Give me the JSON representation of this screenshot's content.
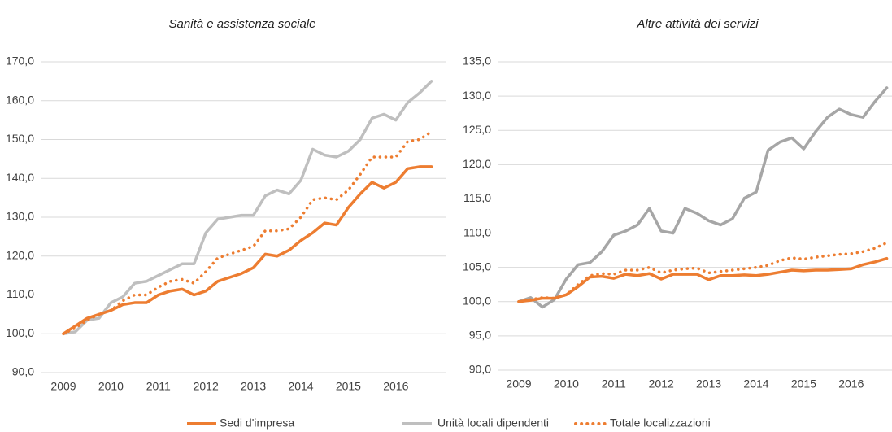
{
  "chart_data": [
    {
      "type": "line",
      "title": "Sanità e assistenza sociale",
      "categories": [
        "2009",
        null,
        null,
        null,
        "2010",
        null,
        null,
        null,
        "2011",
        null,
        null,
        null,
        "2012",
        null,
        null,
        null,
        "2013",
        null,
        null,
        null,
        "2014",
        null,
        null,
        null,
        "2015",
        null,
        null,
        null,
        "2016",
        null,
        null,
        null
      ],
      "series": [
        {
          "name": "Sedi d'impresa",
          "color": "#ed7d31",
          "style": "solid",
          "values": [
            100,
            102,
            104,
            105,
            106,
            107.5,
            108,
            108,
            110,
            111,
            111.5,
            110,
            111,
            113.5,
            114.5,
            115.5,
            117,
            120.5,
            120,
            121.5,
            124,
            126,
            128.5,
            128,
            132.5,
            136,
            139,
            137.5,
            139,
            142.5,
            143,
            143
          ]
        },
        {
          "name": "Unità locali dipendenti",
          "color": "#bfbfbf",
          "style": "solid",
          "values": [
            100,
            100.5,
            103.5,
            104,
            108,
            109.5,
            113,
            113.5,
            115,
            116.5,
            118,
            118,
            126,
            129.5,
            130,
            130.5,
            130.5,
            135.5,
            137,
            136,
            139.5,
            147.5,
            146,
            145.5,
            147,
            150,
            155.5,
            156.5,
            155,
            159.5,
            162,
            165
          ]
        },
        {
          "name": "Totale localizzazioni",
          "color": "#ed7d31",
          "style": "dotted",
          "values": [
            100,
            101.5,
            103.5,
            105,
            106,
            108.5,
            110,
            110,
            112,
            113.5,
            114,
            113,
            116,
            119.5,
            120.5,
            121.5,
            122.5,
            126.5,
            126.5,
            127,
            130,
            134.5,
            135,
            134.5,
            137,
            141,
            145.5,
            145.5,
            145.5,
            149.5,
            150,
            152
          ]
        }
      ],
      "ylim": [
        90,
        170
      ],
      "yticks": [
        {
          "value": 90,
          "label": "90,0"
        },
        {
          "value": 100,
          "label": "100,0"
        },
        {
          "value": 110,
          "label": "110,0"
        },
        {
          "value": 120,
          "label": "120,0"
        },
        {
          "value": 130,
          "label": "130,0"
        },
        {
          "value": 140,
          "label": "140,0"
        },
        {
          "value": 150,
          "label": "150,0"
        },
        {
          "value": 160,
          "label": "160,0"
        },
        {
          "value": 170,
          "label": "170,0"
        }
      ],
      "grid": true
    },
    {
      "type": "line",
      "title": "Altre attività dei servizi",
      "categories": [
        "2009",
        null,
        null,
        null,
        "2010",
        null,
        null,
        null,
        "2011",
        null,
        null,
        null,
        "2012",
        null,
        null,
        null,
        "2013",
        null,
        null,
        null,
        "2014",
        null,
        null,
        null,
        "2015",
        null,
        null,
        null,
        "2016",
        null,
        null,
        null
      ],
      "series": [
        {
          "color": "#ed7d31",
          "style": "solid",
          "values": [
            100,
            100.2,
            100.5,
            100.5,
            101,
            102.2,
            103.6,
            103.7,
            103.4,
            104,
            103.8,
            104.1,
            103.3,
            104,
            104,
            104,
            103.2,
            103.8,
            103.8,
            103.9,
            103.8,
            104,
            104.3,
            104.6,
            104.5,
            104.6,
            104.6,
            104.7,
            104.8,
            105.4,
            105.8,
            106.3
          ]
        },
        {
          "color": "#a6a6a6",
          "style": "solid",
          "values": [
            100,
            100.6,
            99.2,
            100.3,
            103.3,
            105.4,
            105.7,
            107.3,
            109.7,
            110.3,
            111.2,
            113.6,
            110.3,
            110,
            113.6,
            112.9,
            111.8,
            111.2,
            112.1,
            115.1,
            116,
            122.1,
            123.3,
            123.9,
            122.3,
            124.8,
            126.9,
            128.1,
            127.3,
            126.9,
            129.2,
            131.2
          ]
        },
        {
          "color": "#ed7d31",
          "style": "dotted",
          "values": [
            100,
            100.3,
            100.6,
            100.5,
            101,
            102.5,
            103.8,
            104.1,
            104,
            104.6,
            104.6,
            105,
            104.2,
            104.6,
            104.8,
            104.9,
            104.2,
            104.4,
            104.6,
            104.8,
            105,
            105.3,
            106,
            106.4,
            106.2,
            106.5,
            106.7,
            106.9,
            107,
            107.3,
            107.8,
            108.6
          ]
        }
      ],
      "ylim": [
        90,
        135
      ],
      "yticks": [
        {
          "value": 90,
          "label": "90,0"
        },
        {
          "value": 95,
          "label": "95,0"
        },
        {
          "value": 100,
          "label": "100,0"
        },
        {
          "value": 105,
          "label": "105,0"
        },
        {
          "value": 110,
          "label": "110,0"
        },
        {
          "value": 115,
          "label": "115,0"
        },
        {
          "value": 120,
          "label": "120,0"
        },
        {
          "value": 125,
          "label": "125,0"
        },
        {
          "value": 130,
          "label": "130,0"
        },
        {
          "value": 135,
          "label": "135,0"
        }
      ],
      "grid": true
    }
  ]
}
